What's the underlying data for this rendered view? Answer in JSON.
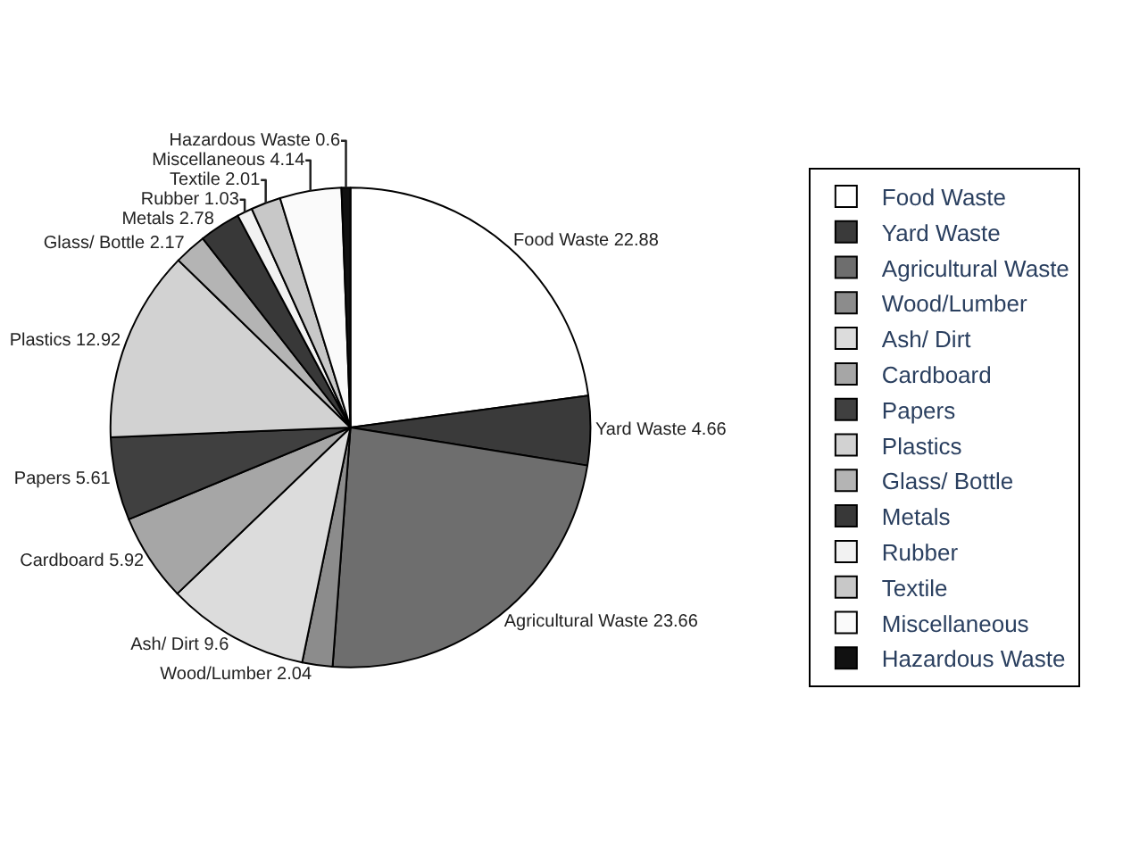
{
  "chart_data": {
    "type": "pie",
    "categories": [
      "Food Waste",
      "Yard Waste",
      "Agricultural Waste",
      "Wood/Lumber",
      "Ash/ Dirt",
      "Cardboard",
      "Papers",
      "Plastics",
      "Glass/ Bottle",
      "Metals",
      "Rubber",
      "Textile",
      "Miscellaneous",
      "Hazardous Waste"
    ],
    "values": [
      22.88,
      4.66,
      23.66,
      2.04,
      9.6,
      5.92,
      5.61,
      12.92,
      2.17,
      2.78,
      1.03,
      2.01,
      4.14,
      0.6
    ],
    "colors": [
      "#ffffff",
      "#3a3a3a",
      "#6e6e6e",
      "#8c8c8c",
      "#dcdcdc",
      "#a6a6a6",
      "#404040",
      "#d2d2d2",
      "#b4b4b4",
      "#383838",
      "#f2f2f2",
      "#c8c8c8",
      "#fafafa",
      "#111111"
    ],
    "value_labels": [
      "Food Waste 22.88",
      "Yard Waste 4.66",
      "Agricultural Waste 23.66",
      "Wood/Lumber 2.04",
      "Ash/ Dirt 9.6",
      "Cardboard 5.92",
      "Papers 5.61",
      "Plastics 12.92",
      "Glass/ Bottle 2.17",
      "Metals 2.78",
      "Rubber 1.03",
      "Textile 2.01",
      "Miscellaneous 4.14",
      "Hazardous Waste 0.6"
    ],
    "legend": "right"
  }
}
